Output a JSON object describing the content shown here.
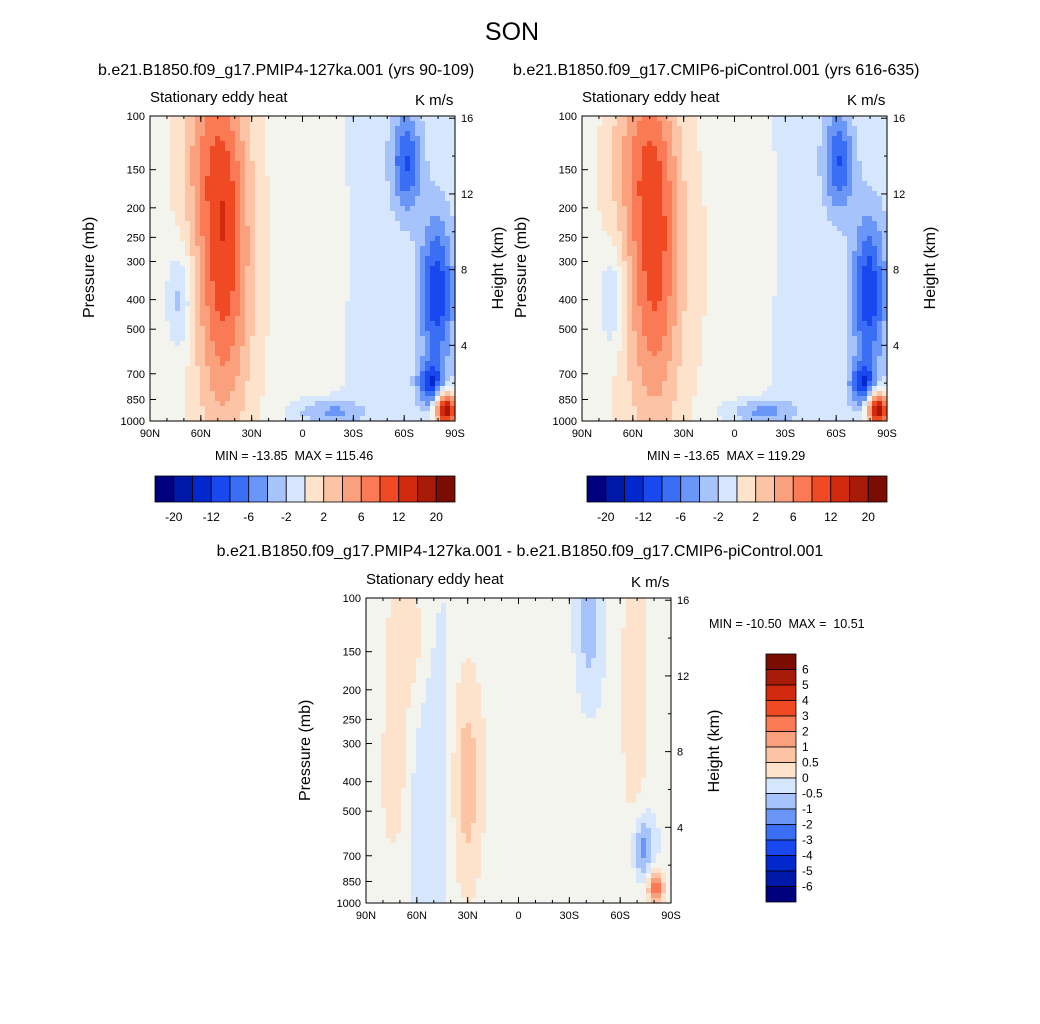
{
  "title": "SON",
  "colors": {
    "blues": [
      "#00007f",
      "#0018a8",
      "#0028cc",
      "#1a48f0",
      "#3a6ef4",
      "#6a96f8",
      "#a6c4fb",
      "#d6e6fd"
    ],
    "reds": [
      "#fde3cc",
      "#fcc4a4",
      "#fba07c",
      "#f97a55",
      "#f04a24",
      "#d12a0f",
      "#a81a08",
      "#7a0c02"
    ],
    "zero": "#f4f4ef"
  },
  "panels": [
    {
      "subtitle": "b.e21.B1850.f09_g17.PMIP4-127ka.001 (yrs 90-109)",
      "left_label": "Stationary eddy heat",
      "right_label": "K m/s",
      "stats": "MIN = -13.85  MAX = 115.46",
      "ylabel": "Pressure (mb)",
      "ylabel_right": "Height (km)"
    },
    {
      "subtitle": "b.e21.B1850.f09_g17.CMIP6-piControl.001 (yrs 616-635)",
      "left_label": "Stationary eddy heat",
      "right_label": "K m/s",
      "stats": "MIN = -13.65  MAX = 119.29",
      "ylabel": "Pressure (mb)",
      "ylabel_right": "Height (km)"
    },
    {
      "subtitle": "b.e21.B1850.f09_g17.PMIP4-127ka.001 - b.e21.B1850.f09_g17.CMIP6-piControl.001",
      "left_label": "Stationary eddy heat",
      "right_label": "K m/s",
      "stats": "MIN = -10.50  MAX =  10.51",
      "ylabel": "Pressure (mb)",
      "ylabel_right": "Height (km)"
    }
  ],
  "chart_data": [
    {
      "type": "heatmap",
      "title": "Stationary eddy heat",
      "units": "K m/s",
      "x_ticks": [
        "90N",
        "60N",
        "30N",
        "0",
        "30S",
        "60S",
        "90S"
      ],
      "y_ticks_pressure": [
        "100",
        "150",
        "200",
        "250",
        "300",
        "400",
        "500",
        "700",
        "850",
        "1000"
      ],
      "y_ticks_height": [
        "16",
        "12",
        "8",
        "4"
      ],
      "colorbar_labels": [
        "-20",
        "-12",
        "-6",
        "-2",
        "2",
        "6",
        "12",
        "20"
      ],
      "min": -13.85,
      "max": 115.46
    },
    {
      "type": "heatmap",
      "title": "Stationary eddy heat",
      "units": "K m/s",
      "x_ticks": [
        "90N",
        "60N",
        "30N",
        "0",
        "30S",
        "60S",
        "90S"
      ],
      "y_ticks_pressure": [
        "100",
        "150",
        "200",
        "250",
        "300",
        "400",
        "500",
        "700",
        "850",
        "1000"
      ],
      "y_ticks_height": [
        "16",
        "12",
        "8",
        "4"
      ],
      "colorbar_labels": [
        "-20",
        "-12",
        "-6",
        "-2",
        "2",
        "6",
        "12",
        "20"
      ],
      "min": -13.65,
      "max": 119.29
    },
    {
      "type": "heatmap",
      "title": "Stationary eddy heat",
      "units": "K m/s",
      "x_ticks": [
        "90N",
        "60N",
        "30N",
        "0",
        "30S",
        "60S",
        "90S"
      ],
      "y_ticks_pressure": [
        "100",
        "150",
        "200",
        "250",
        "300",
        "400",
        "500",
        "700",
        "850",
        "1000"
      ],
      "y_ticks_height": [
        "16",
        "12",
        "8",
        "4"
      ],
      "colorbar_labels": [
        "6",
        "5",
        "4",
        "3",
        "2",
        "1",
        "0.5",
        "0",
        "-0.5",
        "-1",
        "-2",
        "-3",
        "-4",
        "-5",
        "-6"
      ],
      "min": -10.5,
      "max": 10.51
    }
  ]
}
